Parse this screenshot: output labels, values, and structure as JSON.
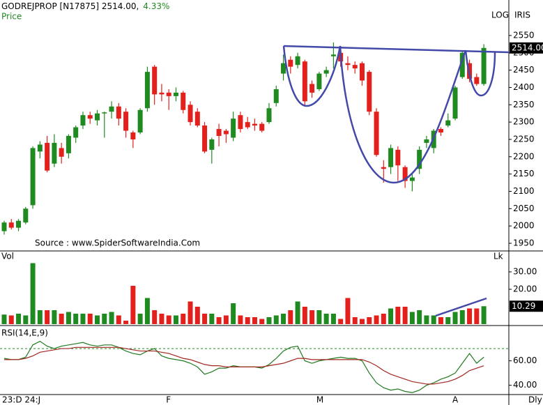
{
  "chart_data": [
    {
      "type": "candlestick",
      "title": "GODREJPROP [N17875] 2514.00,",
      "change_label": "4.33%",
      "ylabel": "Price",
      "scale_labels": [
        "LOG",
        "IRIS"
      ],
      "source": "Source : www.SpiderSoftwareIndia.Com",
      "up_color": "#1f8a1f",
      "down_color": "#e3201b",
      "categories": [
        "23:D 24:J",
        null,
        null,
        null,
        null,
        null,
        null,
        null,
        null,
        null,
        null,
        null,
        null,
        null,
        null,
        null,
        null,
        null,
        null,
        null,
        null,
        null,
        null,
        "F",
        null,
        null,
        null,
        null,
        null,
        null,
        null,
        null,
        null,
        null,
        null,
        null,
        null,
        null,
        null,
        null,
        null,
        null,
        null,
        null,
        "M",
        null,
        null,
        null,
        null,
        null,
        null,
        null,
        null,
        null,
        null,
        null,
        null,
        null,
        null,
        null,
        null,
        null,
        null,
        "A",
        null,
        null,
        null,
        null
      ],
      "open": [
        1985,
        2010,
        1995,
        2010,
        2060,
        2215,
        2240,
        2180,
        2225,
        2210,
        2255,
        2290,
        2320,
        2305,
        2325,
        2330,
        2345,
        2330,
        2270,
        2270,
        2340,
        2460,
        2385,
        2385,
        2375,
        2385,
        2350,
        2330,
        2290,
        2220,
        2280,
        2275,
        2255,
        2320,
        2300,
        2295,
        2295,
        2300,
        2355,
        2440,
        2480,
        2465,
        2475,
        2410,
        2395,
        2440,
        2490,
        2500,
        2470,
        2465,
        2470,
        2445,
        2330,
        2170,
        2170,
        2220,
        2170,
        2130,
        2165,
        2240,
        2225,
        2280,
        2290,
        2310,
        2430,
        2470,
        2430,
        2410
      ],
      "high": [
        2015,
        2020,
        2020,
        2055,
        2230,
        2245,
        2260,
        2265,
        2240,
        2265,
        2290,
        2330,
        2330,
        2335,
        2330,
        2360,
        2355,
        2340,
        2275,
        2340,
        2460,
        2465,
        2410,
        2395,
        2400,
        2390,
        2360,
        2340,
        2300,
        2255,
        2295,
        2280,
        2330,
        2330,
        2315,
        2310,
        2300,
        2355,
        2405,
        2495,
        2490,
        2500,
        2480,
        2420,
        2445,
        2460,
        2530,
        2520,
        2490,
        2475,
        2475,
        2450,
        2340,
        2190,
        2235,
        2230,
        2175,
        2150,
        2230,
        2260,
        2280,
        2285,
        2325,
        2405,
        2505,
        2480,
        2440,
        2525
      ],
      "low": [
        1975,
        1990,
        1985,
        2005,
        2050,
        2195,
        2155,
        2170,
        2180,
        2195,
        2240,
        2280,
        2295,
        2290,
        2255,
        2310,
        2290,
        2255,
        2225,
        2265,
        2330,
        2350,
        2360,
        2335,
        2360,
        2325,
        2290,
        2285,
        2210,
        2180,
        2230,
        2240,
        2245,
        2270,
        2280,
        2275,
        2270,
        2295,
        2345,
        2420,
        2440,
        2455,
        2345,
        2370,
        2390,
        2430,
        2455,
        2460,
        2450,
        2440,
        2405,
        2320,
        2200,
        2125,
        2150,
        2130,
        2110,
        2100,
        2150,
        2225,
        2210,
        2260,
        2285,
        2305,
        2425,
        2415,
        2405,
        2405
      ],
      "close": [
        2010,
        1995,
        2015,
        2050,
        2225,
        2235,
        2160,
        2240,
        2200,
        2260,
        2285,
        2320,
        2310,
        2325,
        2328,
        2345,
        2310,
        2275,
        2250,
        2335,
        2445,
        2380,
        2380,
        2375,
        2385,
        2335,
        2300,
        2290,
        2215,
        2250,
        2260,
        2265,
        2310,
        2280,
        2285,
        2290,
        2275,
        2340,
        2395,
        2470,
        2460,
        2490,
        2360,
        2385,
        2440,
        2450,
        2495,
        2475,
        2465,
        2455,
        2420,
        2330,
        2205,
        2165,
        2225,
        2175,
        2130,
        2140,
        2220,
        2250,
        2275,
        2270,
        2305,
        2400,
        2500,
        2425,
        2410,
        2514
      ],
      "ylim": [
        1948,
        2572
      ],
      "yticks": [
        1950,
        2000,
        2050,
        2100,
        2150,
        2200,
        2250,
        2300,
        2350,
        2400,
        2450,
        2500,
        2550
      ],
      "last_label": {
        "value": 2514,
        "label": "2514.00"
      }
    },
    {
      "type": "bar",
      "title": "Vol",
      "unit_label": "Lk",
      "values": [
        5.5,
        5,
        6,
        5,
        35,
        8,
        8,
        8,
        6,
        7,
        6,
        6,
        6,
        5,
        6,
        7,
        5,
        2,
        22,
        6,
        15,
        8,
        6,
        5,
        5,
        6,
        13,
        10,
        6,
        6,
        4,
        5,
        12,
        5,
        4,
        4,
        3,
        4,
        5,
        6,
        8,
        13,
        10,
        8,
        8,
        6,
        6,
        3,
        15,
        4,
        3,
        4,
        5,
        6,
        9,
        10,
        10,
        7,
        8,
        5,
        5,
        4,
        4,
        7,
        8,
        9,
        9,
        10.29
      ],
      "ylim": [
        0,
        38
      ],
      "yticks": [
        {
          "value": 30,
          "label": "30.00"
        },
        {
          "value": 20,
          "label": "20.00"
        }
      ],
      "last_label": {
        "value": 10.29,
        "label": "10.29"
      }
    },
    {
      "type": "line",
      "title": "RSI(14,E,9)",
      "period_label": "Dly",
      "ref_line": 70,
      "ref_color": "#1f8a1f",
      "series": [
        {
          "color": "#1f7a1f",
          "values": [
            62,
            61,
            61,
            63,
            73,
            76,
            72,
            70,
            72,
            73,
            74,
            75,
            73,
            72,
            73,
            73,
            71,
            68,
            66,
            65,
            68,
            70,
            64,
            62,
            61,
            60,
            58,
            55,
            49,
            51,
            54,
            54,
            56,
            55,
            55,
            55,
            54,
            57,
            62,
            68,
            71,
            72,
            60,
            58,
            60,
            61,
            62,
            63,
            62,
            62,
            60,
            50,
            42,
            38,
            36,
            37,
            35,
            34,
            36,
            40,
            42,
            45,
            47,
            50,
            58,
            66,
            58,
            63
          ]
        },
        {
          "color": "#a3261f",
          "values": [
            61,
            61,
            61,
            62,
            64,
            67,
            68,
            69,
            70,
            70,
            71,
            71,
            71,
            71,
            71,
            71,
            71,
            70,
            69,
            68,
            68,
            68,
            67,
            66,
            64,
            62,
            61,
            59,
            57,
            56,
            56,
            55,
            55,
            55,
            55,
            55,
            55,
            56,
            57,
            58,
            60,
            62,
            62,
            61,
            61,
            61,
            61,
            61,
            61,
            61,
            61,
            59,
            56,
            52,
            49,
            47,
            45,
            43,
            42,
            41,
            41,
            42,
            43,
            45,
            48,
            52,
            54,
            56
          ]
        }
      ],
      "ylim": [
        33,
        86
      ],
      "yticks": [
        {
          "value": 60,
          "label": "60.00"
        },
        {
          "value": 40,
          "label": "40.00"
        }
      ]
    }
  ]
}
